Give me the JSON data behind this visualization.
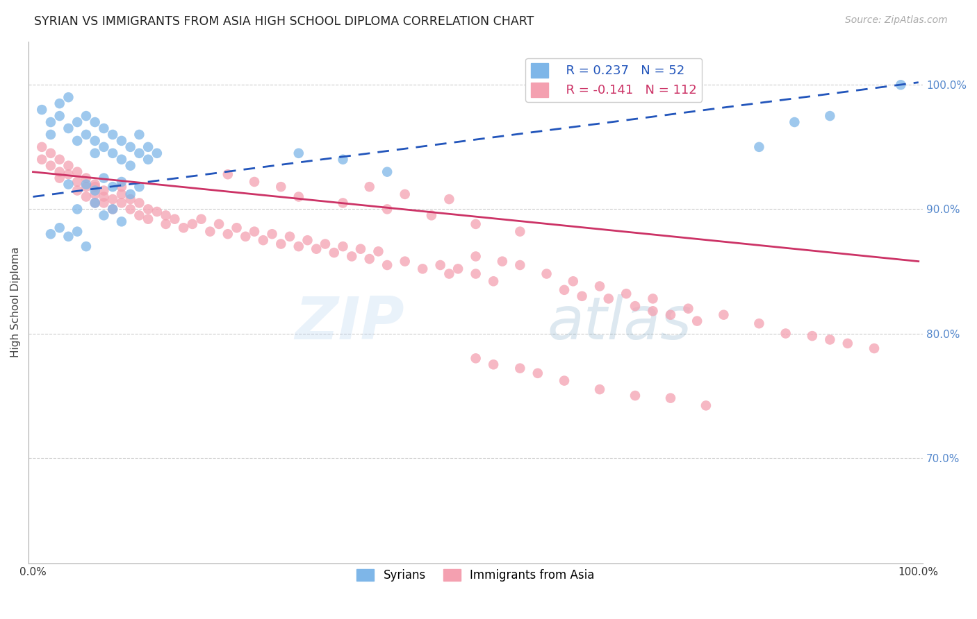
{
  "title": "SYRIAN VS IMMIGRANTS FROM ASIA HIGH SCHOOL DIPLOMA CORRELATION CHART",
  "source": "Source: ZipAtlas.com",
  "ylabel": "High School Diploma",
  "ymin": 0.615,
  "ymax": 1.035,
  "xmin": -0.005,
  "xmax": 1.005,
  "legend_r_blue": "R = 0.237",
  "legend_n_blue": "N = 52",
  "legend_r_pink": "R = -0.141",
  "legend_n_pink": "N = 112",
  "blue_color": "#7EB6E8",
  "pink_color": "#F4A0B0",
  "trend_blue": "#2255BB",
  "trend_pink": "#CC3366",
  "watermark_zip": "ZIP",
  "watermark_atlas": "atlas",
  "legend_label_blue": "Syrians",
  "legend_label_pink": "Immigrants from Asia",
  "blue_trend_x0": 0.0,
  "blue_trend_y0": 0.91,
  "blue_trend_x1": 1.0,
  "blue_trend_y1": 1.002,
  "pink_trend_x0": 0.0,
  "pink_trend_y0": 0.93,
  "pink_trend_x1": 1.0,
  "pink_trend_y1": 0.858,
  "syrian_x": [
    0.01,
    0.02,
    0.02,
    0.03,
    0.03,
    0.04,
    0.04,
    0.05,
    0.05,
    0.06,
    0.06,
    0.07,
    0.07,
    0.07,
    0.08,
    0.08,
    0.09,
    0.09,
    0.1,
    0.1,
    0.11,
    0.11,
    0.12,
    0.12,
    0.13,
    0.13,
    0.14,
    0.04,
    0.06,
    0.07,
    0.08,
    0.09,
    0.1,
    0.11,
    0.12,
    0.05,
    0.07,
    0.08,
    0.09,
    0.1,
    0.02,
    0.03,
    0.04,
    0.05,
    0.06,
    0.3,
    0.35,
    0.4,
    0.82,
    0.86,
    0.9,
    0.98
  ],
  "syrian_y": [
    0.98,
    0.97,
    0.96,
    0.975,
    0.985,
    0.99,
    0.965,
    0.97,
    0.955,
    0.975,
    0.96,
    0.97,
    0.955,
    0.945,
    0.965,
    0.95,
    0.96,
    0.945,
    0.955,
    0.94,
    0.95,
    0.935,
    0.96,
    0.945,
    0.95,
    0.94,
    0.945,
    0.92,
    0.92,
    0.915,
    0.925,
    0.918,
    0.922,
    0.912,
    0.918,
    0.9,
    0.905,
    0.895,
    0.9,
    0.89,
    0.88,
    0.885,
    0.878,
    0.882,
    0.87,
    0.945,
    0.94,
    0.93,
    0.95,
    0.97,
    0.975,
    1.0
  ],
  "asia_x": [
    0.01,
    0.01,
    0.02,
    0.02,
    0.03,
    0.03,
    0.03,
    0.04,
    0.04,
    0.05,
    0.05,
    0.05,
    0.06,
    0.06,
    0.06,
    0.07,
    0.07,
    0.07,
    0.07,
    0.08,
    0.08,
    0.08,
    0.09,
    0.09,
    0.1,
    0.1,
    0.1,
    0.11,
    0.11,
    0.12,
    0.12,
    0.13,
    0.13,
    0.14,
    0.15,
    0.15,
    0.16,
    0.17,
    0.18,
    0.19,
    0.2,
    0.21,
    0.22,
    0.23,
    0.24,
    0.25,
    0.26,
    0.27,
    0.28,
    0.29,
    0.3,
    0.31,
    0.32,
    0.33,
    0.34,
    0.35,
    0.36,
    0.37,
    0.38,
    0.39,
    0.4,
    0.42,
    0.44,
    0.46,
    0.47,
    0.48,
    0.5,
    0.52,
    0.3,
    0.35,
    0.4,
    0.45,
    0.5,
    0.55,
    0.38,
    0.42,
    0.47,
    0.22,
    0.25,
    0.28,
    0.6,
    0.62,
    0.65,
    0.68,
    0.7,
    0.72,
    0.75,
    0.5,
    0.53,
    0.55,
    0.58,
    0.61,
    0.64,
    0.67,
    0.7,
    0.74,
    0.78,
    0.82,
    0.85,
    0.88,
    0.9,
    0.92,
    0.95,
    0.5,
    0.52,
    0.55,
    0.57,
    0.6,
    0.64,
    0.68,
    0.72,
    0.76
  ],
  "asia_y": [
    0.95,
    0.94,
    0.945,
    0.935,
    0.94,
    0.93,
    0.925,
    0.935,
    0.928,
    0.93,
    0.922,
    0.915,
    0.925,
    0.918,
    0.91,
    0.92,
    0.912,
    0.905,
    0.918,
    0.91,
    0.905,
    0.915,
    0.908,
    0.9,
    0.912,
    0.905,
    0.918,
    0.9,
    0.908,
    0.895,
    0.905,
    0.9,
    0.892,
    0.898,
    0.888,
    0.895,
    0.892,
    0.885,
    0.888,
    0.892,
    0.882,
    0.888,
    0.88,
    0.885,
    0.878,
    0.882,
    0.875,
    0.88,
    0.872,
    0.878,
    0.87,
    0.875,
    0.868,
    0.872,
    0.865,
    0.87,
    0.862,
    0.868,
    0.86,
    0.866,
    0.855,
    0.858,
    0.852,
    0.855,
    0.848,
    0.852,
    0.848,
    0.842,
    0.91,
    0.905,
    0.9,
    0.895,
    0.888,
    0.882,
    0.918,
    0.912,
    0.908,
    0.928,
    0.922,
    0.918,
    0.835,
    0.83,
    0.828,
    0.822,
    0.818,
    0.815,
    0.81,
    0.862,
    0.858,
    0.855,
    0.848,
    0.842,
    0.838,
    0.832,
    0.828,
    0.82,
    0.815,
    0.808,
    0.8,
    0.798,
    0.795,
    0.792,
    0.788,
    0.78,
    0.775,
    0.772,
    0.768,
    0.762,
    0.755,
    0.75,
    0.748,
    0.742
  ]
}
